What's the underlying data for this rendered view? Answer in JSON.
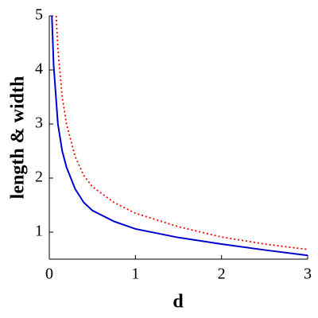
{
  "chart_data": {
    "type": "line",
    "xlabel": "d",
    "ylabel": "length & width",
    "xlim": [
      0,
      3
    ],
    "ylim": [
      0.5,
      5
    ],
    "xticks": [
      0,
      1,
      2,
      3
    ],
    "yticks": [
      1,
      2,
      3,
      4,
      5
    ],
    "series": [
      {
        "color": "#0000cc",
        "style": "solid",
        "x": [
          0.03,
          0.05,
          0.1,
          0.15,
          0.2,
          0.3,
          0.4,
          0.5,
          0.75,
          1,
          1.5,
          2,
          2.5,
          3
        ],
        "values": [
          5,
          4.1,
          3.0,
          2.5,
          2.2,
          1.8,
          1.55,
          1.4,
          1.2,
          1.06,
          0.9,
          0.78,
          0.67,
          0.57
        ]
      },
      {
        "color": "#ff0000",
        "style": "dotted",
        "x": [
          0.08,
          0.1,
          0.15,
          0.2,
          0.3,
          0.4,
          0.5,
          0.75,
          1,
          1.5,
          2,
          2.5,
          3
        ],
        "values": [
          5,
          4.4,
          3.5,
          3.0,
          2.4,
          2.05,
          1.84,
          1.55,
          1.35,
          1.1,
          0.91,
          0.78,
          0.68
        ]
      }
    ]
  }
}
